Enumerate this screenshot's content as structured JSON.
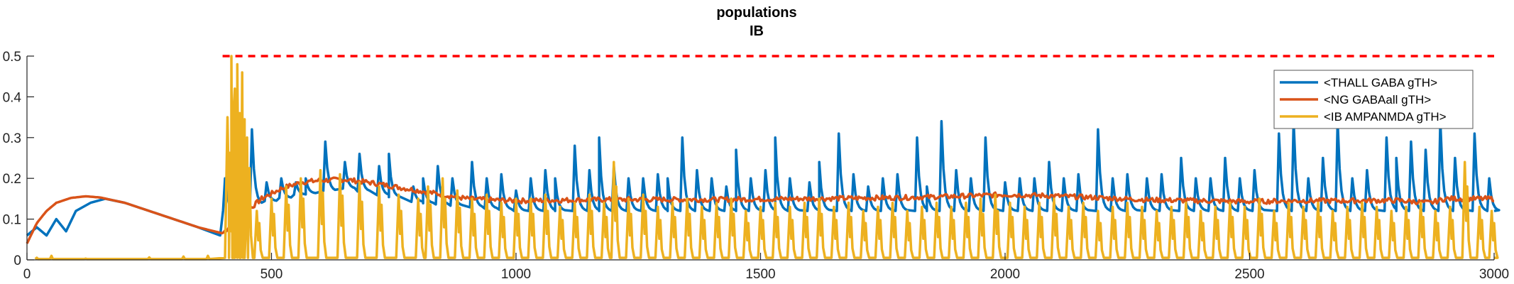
{
  "chart_data": {
    "type": "line",
    "title": "populations",
    "subtitle": "IB",
    "xlabel": "",
    "ylabel": "",
    "xlim": [
      0,
      3000
    ],
    "ylim": [
      0,
      0.5
    ],
    "xticks": [
      0,
      500,
      1000,
      1500,
      2000,
      2500,
      3000
    ],
    "xtick_labels": [
      "0",
      "500",
      "1000",
      "1500",
      "2000",
      "2500",
      "3000"
    ],
    "yticks": [
      0,
      0.1,
      0.2,
      0.3,
      0.4,
      0.5
    ],
    "ytick_labels": [
      "0",
      "0.1",
      "0.2",
      "0.3",
      "0.4",
      "0.5"
    ],
    "grid": false,
    "legend_position": "top-right",
    "reference_line": {
      "y": 0.5,
      "x_start": 400,
      "x_end": 3000,
      "color": "#ff0000",
      "style": "dashed"
    },
    "series": [
      {
        "name": "<THALL GABA gTH>",
        "color": "#0072bd",
        "kind": "spiky",
        "onset": 400,
        "baseline": [
          [
            400,
            0.12
          ],
          [
            550,
            0.16
          ],
          [
            650,
            0.175
          ],
          [
            800,
            0.14
          ],
          [
            1000,
            0.12
          ],
          [
            3000,
            0.12
          ]
        ],
        "peaks": [
          [
            60,
            0.1
          ],
          [
            260,
            0.15
          ],
          [
            300,
            0.14
          ],
          [
            340,
            0.13
          ],
          [
            405,
            0.2
          ],
          [
            420,
            0.22
          ],
          [
            460,
            0.32
          ],
          [
            490,
            0.19
          ],
          [
            520,
            0.2
          ],
          [
            550,
            0.19
          ],
          [
            570,
            0.2
          ],
          [
            610,
            0.29
          ],
          [
            650,
            0.24
          ],
          [
            680,
            0.26
          ],
          [
            720,
            0.23
          ],
          [
            740,
            0.26
          ],
          [
            790,
            0.18
          ],
          [
            810,
            0.2
          ],
          [
            840,
            0.23
          ],
          [
            870,
            0.2
          ],
          [
            910,
            0.24
          ],
          [
            940,
            0.2
          ],
          [
            970,
            0.21
          ],
          [
            1000,
            0.17
          ],
          [
            1030,
            0.2
          ],
          [
            1060,
            0.22
          ],
          [
            1080,
            0.2
          ],
          [
            1120,
            0.28
          ],
          [
            1150,
            0.22
          ],
          [
            1170,
            0.3
          ],
          [
            1200,
            0.23
          ],
          [
            1230,
            0.2
          ],
          [
            1260,
            0.2
          ],
          [
            1290,
            0.21
          ],
          [
            1310,
            0.2
          ],
          [
            1340,
            0.3
          ],
          [
            1370,
            0.22
          ],
          [
            1400,
            0.2
          ],
          [
            1430,
            0.18
          ],
          [
            1450,
            0.27
          ],
          [
            1480,
            0.2
          ],
          [
            1510,
            0.22
          ],
          [
            1530,
            0.3
          ],
          [
            1560,
            0.2
          ],
          [
            1600,
            0.19
          ],
          [
            1620,
            0.24
          ],
          [
            1660,
            0.31
          ],
          [
            1690,
            0.21
          ],
          [
            1720,
            0.18
          ],
          [
            1750,
            0.2
          ],
          [
            1780,
            0.21
          ],
          [
            1820,
            0.3
          ],
          [
            1840,
            0.18
          ],
          [
            1870,
            0.34
          ],
          [
            1900,
            0.22
          ],
          [
            1930,
            0.2
          ],
          [
            1960,
            0.3
          ],
          [
            2000,
            0.19
          ],
          [
            2030,
            0.2
          ],
          [
            2060,
            0.2
          ],
          [
            2090,
            0.24
          ],
          [
            2120,
            0.2
          ],
          [
            2150,
            0.21
          ],
          [
            2190,
            0.32
          ],
          [
            2220,
            0.2
          ],
          [
            2250,
            0.21
          ],
          [
            2290,
            0.2
          ],
          [
            2320,
            0.21
          ],
          [
            2360,
            0.25
          ],
          [
            2390,
            0.2
          ],
          [
            2420,
            0.2
          ],
          [
            2450,
            0.25
          ],
          [
            2480,
            0.2
          ],
          [
            2510,
            0.22
          ],
          [
            2560,
            0.31
          ],
          [
            2590,
            0.34
          ],
          [
            2620,
            0.2
          ],
          [
            2650,
            0.25
          ],
          [
            2680,
            0.34
          ],
          [
            2710,
            0.2
          ],
          [
            2740,
            0.22
          ],
          [
            2780,
            0.3
          ],
          [
            2800,
            0.25
          ],
          [
            2830,
            0.29
          ],
          [
            2860,
            0.27
          ],
          [
            2890,
            0.34
          ],
          [
            2920,
            0.25
          ],
          [
            2960,
            0.31
          ],
          [
            2990,
            0.2
          ]
        ]
      },
      {
        "name": "<NG GABAall gTH>",
        "color": "#d95319",
        "kind": "smooth",
        "points": [
          [
            0,
            0.04
          ],
          [
            20,
            0.09
          ],
          [
            40,
            0.12
          ],
          [
            60,
            0.14
          ],
          [
            90,
            0.152
          ],
          [
            120,
            0.156
          ],
          [
            150,
            0.153
          ],
          [
            200,
            0.14
          ],
          [
            250,
            0.12
          ],
          [
            300,
            0.1
          ],
          [
            350,
            0.08
          ],
          [
            400,
            0.065
          ],
          [
            420,
            0.09
          ],
          [
            450,
            0.12
          ],
          [
            480,
            0.15
          ],
          [
            520,
            0.175
          ],
          [
            560,
            0.19
          ],
          [
            600,
            0.195
          ],
          [
            650,
            0.197
          ],
          [
            700,
            0.19
          ],
          [
            750,
            0.18
          ],
          [
            800,
            0.17
          ],
          [
            850,
            0.16
          ],
          [
            900,
            0.15
          ],
          [
            950,
            0.147
          ],
          [
            1000,
            0.145
          ],
          [
            1200,
            0.148
          ],
          [
            1400,
            0.148
          ],
          [
            1600,
            0.15
          ],
          [
            1800,
            0.153
          ],
          [
            1900,
            0.156
          ],
          [
            2000,
            0.16
          ],
          [
            2100,
            0.157
          ],
          [
            2200,
            0.152
          ],
          [
            2300,
            0.147
          ],
          [
            2400,
            0.145
          ],
          [
            2500,
            0.143
          ],
          [
            2600,
            0.145
          ],
          [
            2700,
            0.145
          ],
          [
            2800,
            0.146
          ],
          [
            2870,
            0.14
          ],
          [
            2900,
            0.15
          ],
          [
            3000,
            0.15
          ]
        ]
      },
      {
        "name": "<IB AMPANMDA gTH>",
        "color": "#edb120",
        "kind": "bursts",
        "onset": 400,
        "floor": 0.005,
        "bursts": [
          [
            410,
            0.35
          ],
          [
            418,
            0.5
          ],
          [
            425,
            0.42
          ],
          [
            430,
            0.48
          ],
          [
            440,
            0.46
          ],
          [
            450,
            0.3
          ],
          [
            470,
            0.12
          ],
          [
            500,
            0.15
          ],
          [
            530,
            0.18
          ],
          [
            560,
            0.2
          ],
          [
            600,
            0.22
          ],
          [
            640,
            0.21
          ],
          [
            680,
            0.19
          ],
          [
            720,
            0.18
          ],
          [
            760,
            0.16
          ],
          [
            800,
            0.15
          ],
          [
            820,
            0.18
          ],
          [
            850,
            0.2
          ],
          [
            880,
            0.17
          ],
          [
            910,
            0.15
          ],
          [
            940,
            0.16
          ],
          [
            970,
            0.14
          ],
          [
            1000,
            0.15
          ],
          [
            1030,
            0.15
          ],
          [
            1060,
            0.16
          ],
          [
            1090,
            0.13
          ],
          [
            1120,
            0.14
          ],
          [
            1150,
            0.16
          ],
          [
            1180,
            0.14
          ],
          [
            1200,
            0.24
          ],
          [
            1230,
            0.15
          ],
          [
            1260,
            0.16
          ],
          [
            1290,
            0.13
          ],
          [
            1320,
            0.14
          ],
          [
            1350,
            0.15
          ],
          [
            1380,
            0.13
          ],
          [
            1410,
            0.14
          ],
          [
            1440,
            0.15
          ],
          [
            1470,
            0.12
          ],
          [
            1500,
            0.13
          ],
          [
            1530,
            0.14
          ],
          [
            1560,
            0.13
          ],
          [
            1590,
            0.14
          ],
          [
            1620,
            0.15
          ],
          [
            1650,
            0.13
          ],
          [
            1680,
            0.14
          ],
          [
            1710,
            0.12
          ],
          [
            1740,
            0.13
          ],
          [
            1770,
            0.14
          ],
          [
            1800,
            0.12
          ],
          [
            1830,
            0.13
          ],
          [
            1860,
            0.14
          ],
          [
            1890,
            0.13
          ],
          [
            1920,
            0.14
          ],
          [
            1950,
            0.15
          ],
          [
            1980,
            0.16
          ],
          [
            2010,
            0.14
          ],
          [
            2040,
            0.13
          ],
          [
            2070,
            0.14
          ],
          [
            2100,
            0.15
          ],
          [
            2130,
            0.13
          ],
          [
            2160,
            0.14
          ],
          [
            2190,
            0.12
          ],
          [
            2220,
            0.13
          ],
          [
            2250,
            0.14
          ],
          [
            2280,
            0.13
          ],
          [
            2310,
            0.12
          ],
          [
            2340,
            0.13
          ],
          [
            2370,
            0.14
          ],
          [
            2400,
            0.12
          ],
          [
            2430,
            0.13
          ],
          [
            2460,
            0.14
          ],
          [
            2490,
            0.13
          ],
          [
            2520,
            0.15
          ],
          [
            2550,
            0.12
          ],
          [
            2580,
            0.14
          ],
          [
            2610,
            0.13
          ],
          [
            2640,
            0.14
          ],
          [
            2670,
            0.12
          ],
          [
            2700,
            0.13
          ],
          [
            2730,
            0.14
          ],
          [
            2760,
            0.13
          ],
          [
            2790,
            0.12
          ],
          [
            2820,
            0.13
          ],
          [
            2850,
            0.14
          ],
          [
            2880,
            0.12
          ],
          [
            2910,
            0.13
          ],
          [
            2940,
            0.24
          ],
          [
            2970,
            0.13
          ],
          [
            2995,
            0.12
          ]
        ],
        "pre_onset_noise": [
          [
            20,
            0.005
          ],
          [
            50,
            0.01
          ],
          [
            120,
            0.003
          ],
          [
            250,
            0.006
          ],
          [
            320,
            0.008
          ],
          [
            370,
            0.01
          ]
        ]
      }
    ]
  }
}
